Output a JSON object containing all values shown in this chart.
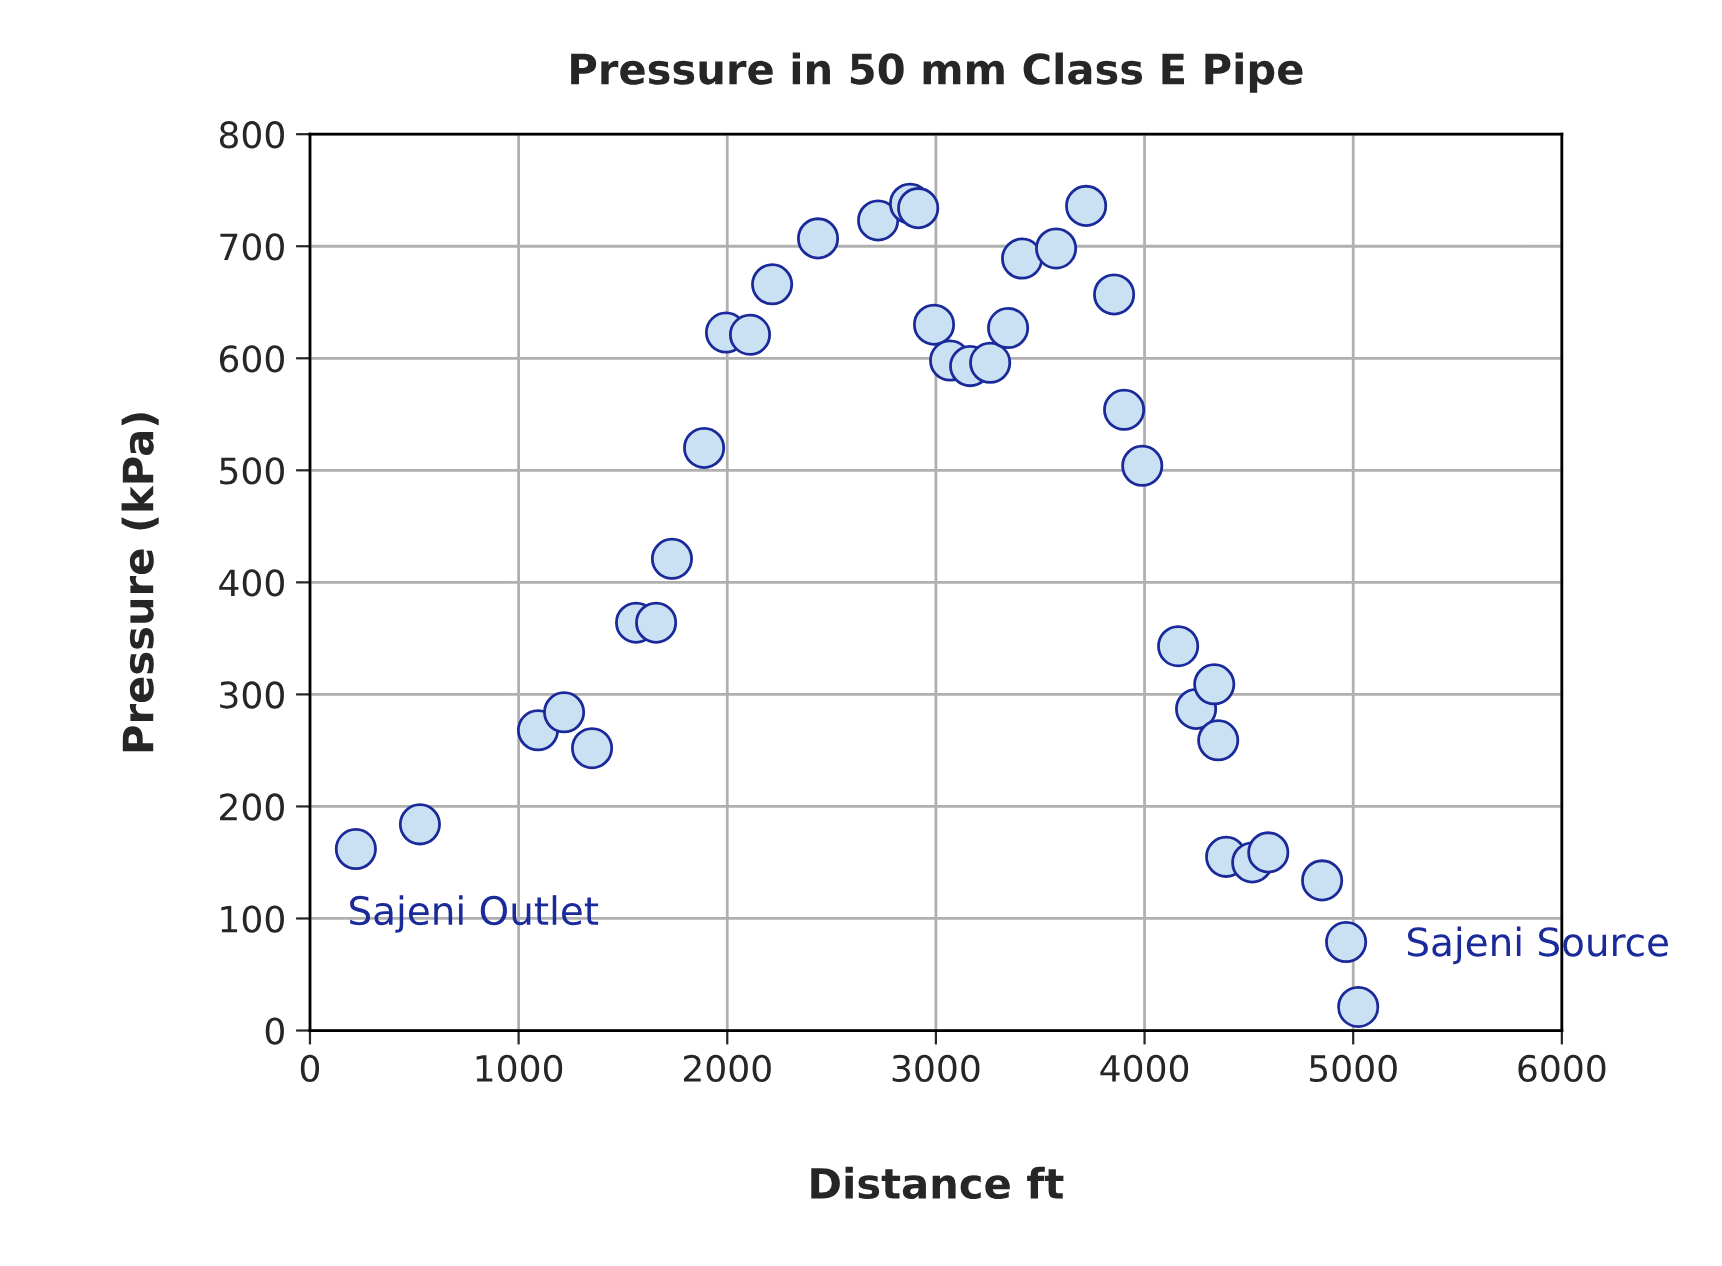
{
  "chart_data": {
    "type": "scatter",
    "title": "Pressure in 50 mm Class E Pipe",
    "xlabel": "Distance ft",
    "ylabel": "Pressure (kPa)",
    "xlim": [
      0,
      6000
    ],
    "xticks": [
      0,
      1000,
      2000,
      3000,
      4000,
      5000,
      6000
    ],
    "ylim": [
      0,
      800
    ],
    "yticks": [
      0,
      100,
      200,
      300,
      400,
      500,
      600,
      700,
      800
    ],
    "grid": true,
    "marker": "circle",
    "legend": false,
    "series": [
      {
        "color": "#c9e1f2",
        "x": [
          220,
          527,
          1093,
          1218,
          1352,
          1563,
          1659,
          1735,
          1889,
          1994,
          2109,
          2215,
          2435,
          2723,
          2876,
          2915,
          2991,
          3068,
          3164,
          3260,
          3346,
          3413,
          3576,
          3720,
          3854,
          3902,
          3989,
          4161,
          4247,
          4334,
          4353,
          4391,
          4516,
          4593,
          4851,
          4966,
          5024
        ],
        "values": [
          162,
          184,
          268,
          284,
          252,
          364,
          364,
          421,
          520,
          623,
          621,
          666,
          707,
          723,
          738,
          734,
          630,
          598,
          593,
          596,
          627,
          689,
          698,
          736,
          657,
          554,
          504,
          343,
          287,
          309,
          259,
          155,
          150,
          159,
          134,
          79,
          21
        ]
      }
    ],
    "annotations": [
      "Sajeni Outlet",
      "Sajeni Source"
    ]
  }
}
